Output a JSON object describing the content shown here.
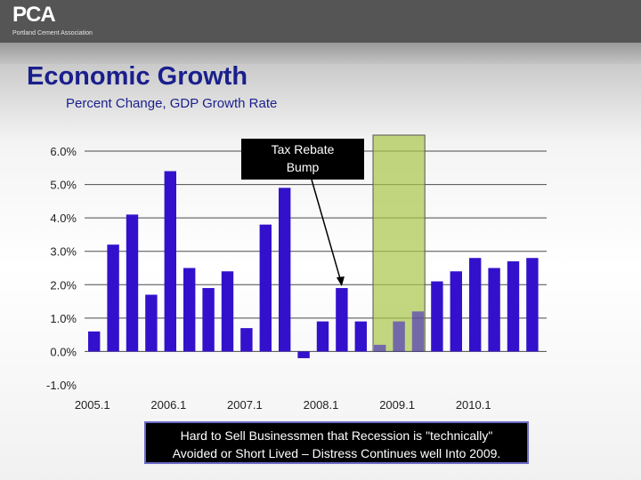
{
  "header": {
    "logo_text": "PCA",
    "logo_subtitle": "Portland Cement Association"
  },
  "slide": {
    "title": "Economic Growth",
    "subtitle": "Percent Change, GDP Growth Rate"
  },
  "callouts": {
    "rebate_line1": "Tax Rebate",
    "rebate_line2": "Bump",
    "note_line1": "Hard to Sell Businessmen that Recession is \"technically\"",
    "note_line2": "Avoided or Short Lived – Distress Continues well Into 2009."
  },
  "colors": {
    "bar": "#3311cc",
    "highlight_fill": "#a8c64a",
    "title": "#1a1f8c"
  },
  "chart_data": {
    "type": "bar",
    "categories": [
      "2005.1",
      "2005.2",
      "2005.3",
      "2005.4",
      "2006.1",
      "2006.2",
      "2006.3",
      "2006.4",
      "2007.1",
      "2007.2",
      "2007.3",
      "2007.4",
      "2008.1",
      "2008.2",
      "2008.3",
      "2008.4",
      "2009.1",
      "2009.2",
      "2009.3",
      "2009.4",
      "2010.1",
      "2010.2",
      "2010.3",
      "2010.4"
    ],
    "values": [
      0.6,
      3.2,
      4.1,
      1.7,
      5.4,
      2.5,
      1.9,
      2.4,
      0.7,
      3.8,
      4.9,
      -0.2,
      0.9,
      1.9,
      0.9,
      0.2,
      0.9,
      1.2,
      2.1,
      2.4,
      2.8,
      2.5,
      2.7,
      2.8
    ],
    "x_tick_labels": [
      "2005.1",
      "2006.1",
      "2007.1",
      "2008.1",
      "2009.1",
      "2010.1"
    ],
    "y_tick_labels": [
      "-1.0%",
      "0.0%",
      "1.0%",
      "2.0%",
      "3.0%",
      "4.0%",
      "5.0%",
      "6.0%"
    ],
    "ylim": [
      -1.0,
      6.0
    ],
    "grid": true,
    "highlight_range": [
      "2008.4",
      "2009.2"
    ],
    "title": "",
    "xlabel": "",
    "ylabel": ""
  }
}
